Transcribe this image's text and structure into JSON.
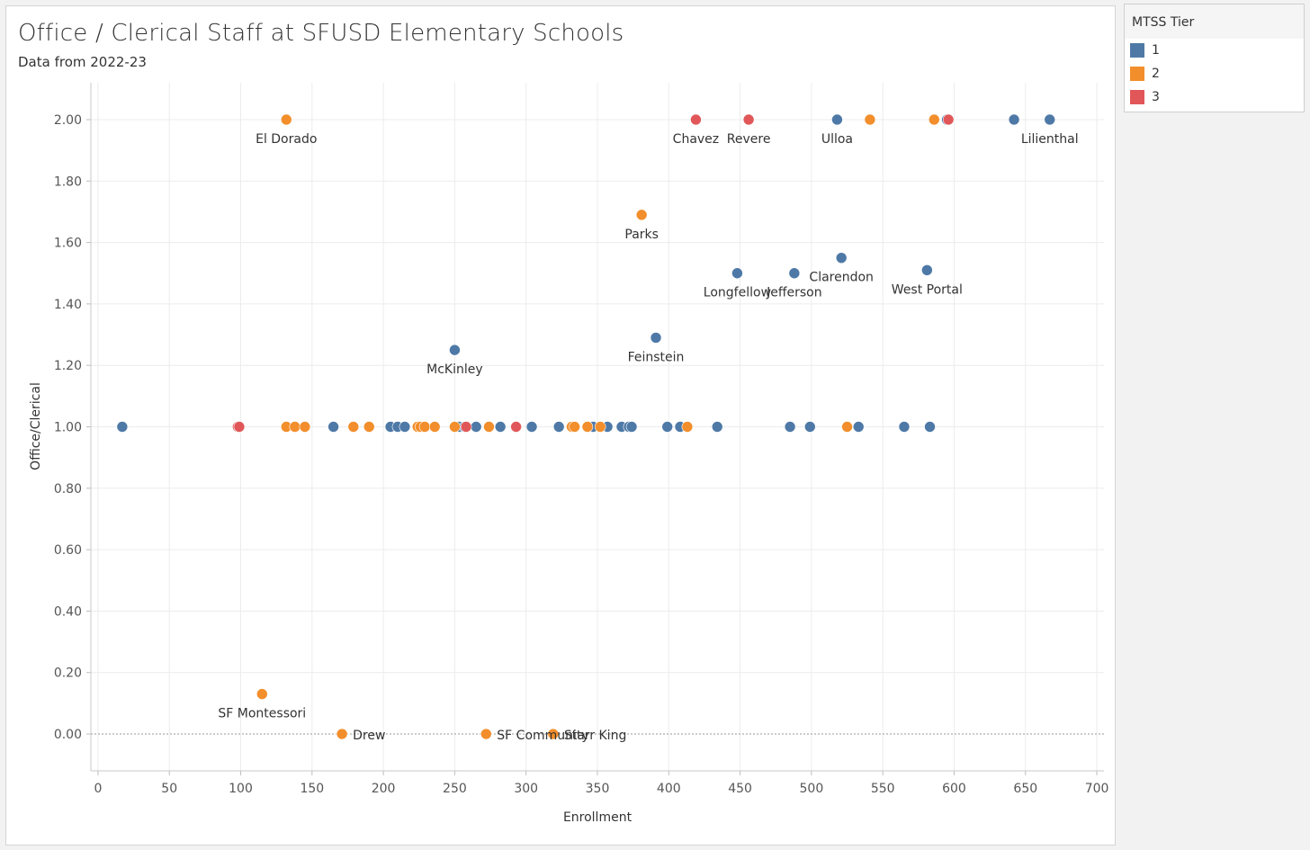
{
  "header": {
    "title": "Office / Clerical Staff at SFUSD Elementary Schools",
    "subtitle": "Data from 2022-23"
  },
  "legend": {
    "title": "MTSS Tier",
    "items": [
      {
        "label": "1",
        "color": "#4e79a7"
      },
      {
        "label": "2",
        "color": "#f28e2b"
      },
      {
        "label": "3",
        "color": "#e15759"
      }
    ]
  },
  "chart_data": {
    "type": "scatter",
    "title": "Office / Clerical Staff at SFUSD Elementary Schools",
    "subtitle": "Data from 2022-23",
    "xlabel": "Enrollment",
    "ylabel": "Office/Clerical",
    "xlim": [
      -5,
      705
    ],
    "ylim": [
      -0.12,
      2.12
    ],
    "xticks": [
      0,
      50,
      100,
      150,
      200,
      250,
      300,
      350,
      400,
      450,
      500,
      550,
      600,
      650,
      700
    ],
    "yticks": [
      0,
      0.2,
      0.4,
      0.6,
      0.8,
      1.0,
      1.2,
      1.4,
      1.6,
      1.8,
      2.0
    ],
    "ytick_labels": [
      "0.00",
      "0.20",
      "0.40",
      "0.60",
      "0.80",
      "1.00",
      "1.20",
      "1.40",
      "1.60",
      "1.80",
      "2.00"
    ],
    "grid": true,
    "legend_position": "right",
    "reference_line": {
      "y": 0,
      "style": "dotted"
    },
    "series": [
      {
        "name": "1",
        "color": "#4e79a7",
        "points": [
          {
            "x": 17,
            "y": 1.0
          },
          {
            "x": 165,
            "y": 1.0
          },
          {
            "x": 205,
            "y": 1.0
          },
          {
            "x": 210,
            "y": 1.0
          },
          {
            "x": 215,
            "y": 1.0
          },
          {
            "x": 250,
            "y": 1.25,
            "label": "McKinley"
          },
          {
            "x": 253,
            "y": 1.0
          },
          {
            "x": 257,
            "y": 1.0
          },
          {
            "x": 265,
            "y": 1.0
          },
          {
            "x": 282,
            "y": 1.0
          },
          {
            "x": 304,
            "y": 1.0
          },
          {
            "x": 323,
            "y": 1.0
          },
          {
            "x": 347,
            "y": 1.0
          },
          {
            "x": 357,
            "y": 1.0
          },
          {
            "x": 367,
            "y": 1.0
          },
          {
            "x": 372,
            "y": 1.0
          },
          {
            "x": 374,
            "y": 1.0
          },
          {
            "x": 391,
            "y": 1.29,
            "label": "Feinstein"
          },
          {
            "x": 399,
            "y": 1.0
          },
          {
            "x": 408,
            "y": 1.0
          },
          {
            "x": 434,
            "y": 1.0
          },
          {
            "x": 448,
            "y": 1.5,
            "label": "Longfellow"
          },
          {
            "x": 485,
            "y": 1.0
          },
          {
            "x": 488,
            "y": 1.5,
            "label": "Jefferson"
          },
          {
            "x": 499,
            "y": 1.0
          },
          {
            "x": 518,
            "y": 2.0,
            "label": "Ulloa"
          },
          {
            "x": 521,
            "y": 1.55,
            "label": "Clarendon"
          },
          {
            "x": 533,
            "y": 1.0
          },
          {
            "x": 565,
            "y": 1.0
          },
          {
            "x": 581,
            "y": 1.51,
            "label": "West Portal"
          },
          {
            "x": 583,
            "y": 1.0
          },
          {
            "x": 595,
            "y": 2.0
          },
          {
            "x": 642,
            "y": 2.0
          },
          {
            "x": 667,
            "y": 2.0,
            "label": "Lilienthal"
          }
        ]
      },
      {
        "name": "2",
        "color": "#f28e2b",
        "points": [
          {
            "x": 115,
            "y": 0.13,
            "label": "SF Montessori"
          },
          {
            "x": 132,
            "y": 2.0,
            "label": "El Dorado"
          },
          {
            "x": 132,
            "y": 1.0
          },
          {
            "x": 138,
            "y": 1.0
          },
          {
            "x": 145,
            "y": 1.0
          },
          {
            "x": 171,
            "y": 0.0,
            "label": "Drew"
          },
          {
            "x": 179,
            "y": 1.0
          },
          {
            "x": 190,
            "y": 1.0
          },
          {
            "x": 224,
            "y": 1.0
          },
          {
            "x": 226,
            "y": 1.0
          },
          {
            "x": 229,
            "y": 1.0
          },
          {
            "x": 236,
            "y": 1.0
          },
          {
            "x": 250,
            "y": 1.0
          },
          {
            "x": 272,
            "y": 0.0,
            "label": "SF Community"
          },
          {
            "x": 274,
            "y": 1.0
          },
          {
            "x": 319,
            "y": 0.0,
            "label": "Starr King"
          },
          {
            "x": 332,
            "y": 1.0
          },
          {
            "x": 334,
            "y": 1.0
          },
          {
            "x": 343,
            "y": 1.0
          },
          {
            "x": 352,
            "y": 1.0
          },
          {
            "x": 381,
            "y": 1.69,
            "label": "Parks"
          },
          {
            "x": 413,
            "y": 1.0
          },
          {
            "x": 525,
            "y": 1.0
          },
          {
            "x": 541,
            "y": 2.0
          },
          {
            "x": 586,
            "y": 2.0
          }
        ]
      },
      {
        "name": "3",
        "color": "#e15759",
        "points": [
          {
            "x": 98,
            "y": 1.0
          },
          {
            "x": 99,
            "y": 1.0
          },
          {
            "x": 258,
            "y": 1.0
          },
          {
            "x": 293,
            "y": 1.0
          },
          {
            "x": 419,
            "y": 2.0,
            "label": "Chavez"
          },
          {
            "x": 456,
            "y": 2.0,
            "label": "Revere"
          },
          {
            "x": 596,
            "y": 2.0
          }
        ]
      }
    ]
  }
}
